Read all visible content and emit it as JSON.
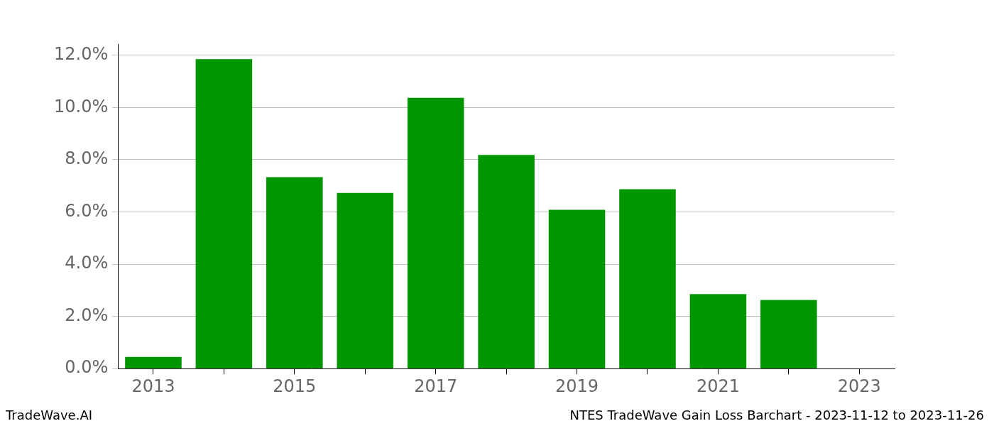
{
  "chart_data": {
    "type": "bar",
    "title": "NTES TradeWave Gain Loss Barchart - 2023-11-12 to 2023-11-26",
    "annotations": [
      "TradeWave.AI"
    ],
    "categories": [
      "2013",
      null,
      "2015",
      null,
      "2017",
      null,
      "2019",
      null,
      "2021",
      null,
      "2023"
    ],
    "values": [
      0.45,
      11.85,
      7.33,
      6.73,
      10.37,
      8.18,
      6.08,
      6.87,
      2.85,
      2.63,
      0
    ],
    "color": "#009600",
    "ylim": [
      0,
      12.43
    ],
    "yticks": [
      {
        "value": 0,
        "label": "0.0%"
      },
      {
        "value": 2,
        "label": "2.0%"
      },
      {
        "value": 4,
        "label": "4.0%"
      },
      {
        "value": 6,
        "label": "6.0%"
      },
      {
        "value": 8,
        "label": "8.0%"
      },
      {
        "value": 10,
        "label": "10.0%"
      },
      {
        "value": 12,
        "label": "12.0%"
      }
    ],
    "grid": true
  }
}
